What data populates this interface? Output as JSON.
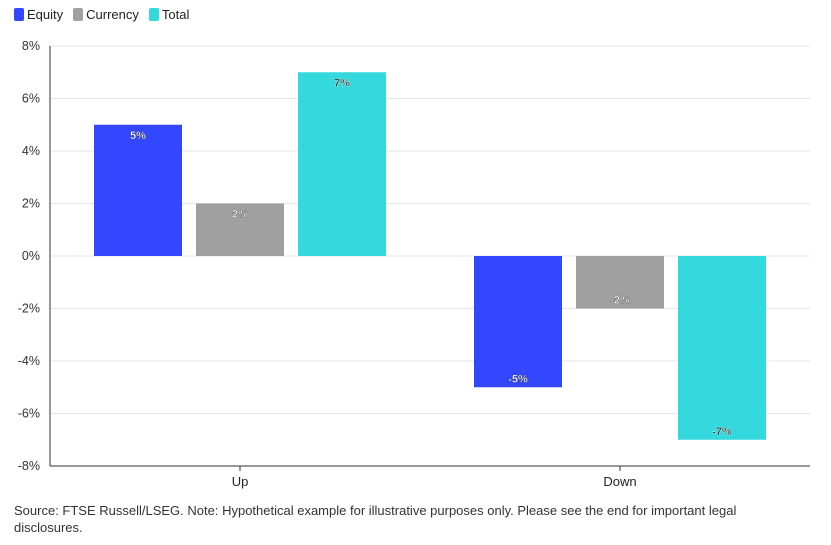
{
  "legend": [
    {
      "label": "Equity",
      "color": "#3347ff"
    },
    {
      "label": "Currency",
      "color": "#a0a0a0"
    },
    {
      "label": "Total",
      "color": "#33d9dc"
    }
  ],
  "source": "Source: FTSE Russell/LSEG. Note: Hypothetical example for illustrative purposes only. Please see the end for important legal disclosures.",
  "chart_data": {
    "type": "bar",
    "categories": [
      "Up",
      "Down"
    ],
    "series": [
      {
        "name": "Equity",
        "values": [
          5,
          -5
        ],
        "labels": [
          "5%",
          "-5%"
        ],
        "color": "#3347ff"
      },
      {
        "name": "Currency",
        "values": [
          2,
          -2
        ],
        "labels": [
          "2%",
          "-2%"
        ],
        "color": "#a0a0a0"
      },
      {
        "name": "Total",
        "values": [
          7,
          -7
        ],
        "labels": [
          "7%",
          "-7%"
        ],
        "color": "#33d9dc"
      }
    ],
    "ylim": [
      -8,
      8
    ],
    "yticks": [
      8,
      6,
      4,
      2,
      0,
      -2,
      -4,
      -6,
      -8
    ],
    "ytick_labels": [
      "8%",
      "6%",
      "4%",
      "2%",
      "0%",
      "-2%",
      "-4%",
      "-6%",
      "-8%"
    ],
    "grid": true,
    "legend_position": "top-left"
  }
}
